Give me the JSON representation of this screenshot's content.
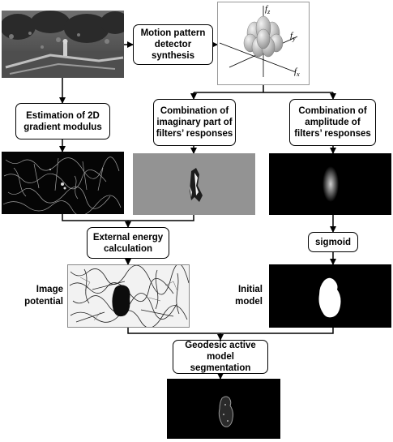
{
  "boxes": {
    "motion": "Motion pattern\ndetector\nsynthesis",
    "gradient": "Estimation of 2D\ngradient modulus",
    "imaginary": "Combination of\nimaginary part of\nfilters’ responses",
    "amplitude": "Combination of\namplitude of\nfilters’ responses",
    "external": "External energy\ncalculation",
    "sigmoid": "sigmoid",
    "geodesic": "Geodesic active model\nsegmentation"
  },
  "side_labels": {
    "image_potential": "Image\npotential",
    "initial_model": "Initial\nmodel"
  },
  "axes3d": {
    "fz": "f",
    "fz_sub": "z",
    "fy": "f",
    "fy_sub": "y",
    "fx": "f",
    "fx_sub": "x"
  }
}
